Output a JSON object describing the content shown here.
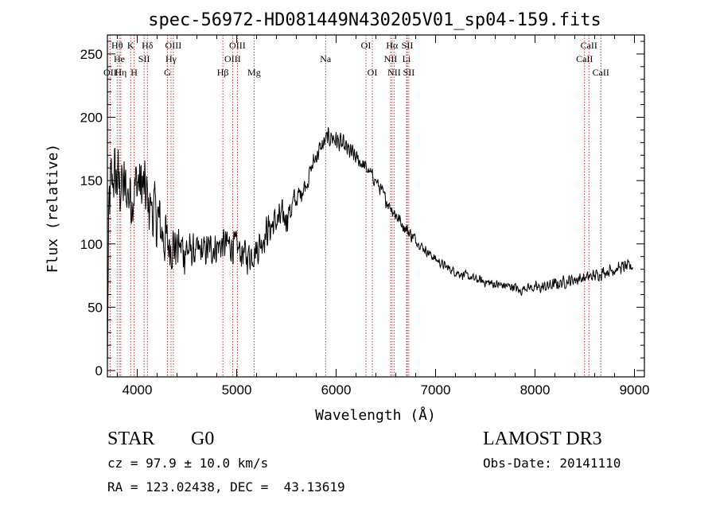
{
  "chart_data": {
    "type": "line",
    "title": "spec-56972-HD081449N430205V01_sp04-159.fits",
    "xlabel": "Wavelength (Å)",
    "ylabel": "Flux (relative)",
    "xlim": [
      3700,
      9100
    ],
    "ylim": [
      -5,
      265
    ],
    "xticks": [
      4000,
      5000,
      6000,
      7000,
      8000,
      9000
    ],
    "yticks": [
      0,
      50,
      100,
      150,
      200,
      250
    ],
    "minor_x_step": 200,
    "minor_y_step": 10,
    "xtick_labels": [
      "4000",
      "5000",
      "6000",
      "7000",
      "8000",
      "9000"
    ],
    "ytick_labels": [
      "0",
      "50",
      "100",
      "150",
      "200",
      "250"
    ],
    "series": [
      {
        "name": "flux",
        "anchors_x": [
          3700,
          3705,
          3720,
          3760,
          3800,
          3850,
          3900,
          3950,
          4000,
          4050,
          4100,
          4200,
          4300,
          4400,
          4500,
          4600,
          4700,
          4800,
          4900,
          5000,
          5100,
          5200,
          5300,
          5400,
          5500,
          5600,
          5700,
          5800,
          5900,
          5950,
          6000,
          6100,
          6200,
          6300,
          6400,
          6500,
          6600,
          6700,
          6800,
          6900,
          7000,
          7100,
          7200,
          7300,
          7400,
          7500,
          7600,
          7700,
          7800,
          7850,
          7900,
          8000,
          8100,
          8200,
          8300,
          8400,
          8500,
          8600,
          8700,
          8800,
          8900,
          8980
        ],
        "anchors_y": [
          0,
          60,
          130,
          155,
          150,
          145,
          140,
          138,
          150,
          145,
          135,
          120,
          100,
          98,
          95,
          93,
          95,
          98,
          100,
          97,
          90,
          95,
          110,
          118,
          122,
          135,
          148,
          170,
          182,
          185,
          182,
          175,
          168,
          160,
          150,
          135,
          123,
          112,
          103,
          95,
          88,
          82,
          78,
          75,
          72,
          70,
          68,
          67,
          66,
          62,
          66,
          65,
          66,
          68,
          70,
          72,
          73,
          75,
          78,
          80,
          82,
          82
        ],
        "noise_amplitude_note": "noise ~±35 below 4300Å, ~±20 to 5600Å, ~±8 near Na peak, ~±4 in red"
      }
    ],
    "spectral_lines": [
      {
        "label": "OII",
        "wavelength": 3727,
        "row": 2
      },
      {
        "label": "Hθ",
        "wavelength": 3798,
        "row": 0
      },
      {
        "label": "He",
        "wavelength": 3820,
        "row": 1
      },
      {
        "label": "Hη",
        "wavelength": 3835,
        "row": 2
      },
      {
        "label": "K",
        "wavelength": 3934,
        "row": 0
      },
      {
        "label": "H",
        "wavelength": 3969,
        "row": 2
      },
      {
        "label": "SII",
        "wavelength": 4069,
        "row": 1
      },
      {
        "label": "Hδ",
        "wavelength": 4102,
        "row": 0
      },
      {
        "label": "OIII",
        "wavelength": 4363,
        "row": 0
      },
      {
        "label": "Hγ",
        "wavelength": 4340,
        "row": 1
      },
      {
        "label": "G",
        "wavelength": 4304,
        "row": 2
      },
      {
        "label": "Hβ",
        "wavelength": 4861,
        "row": 2
      },
      {
        "label": "OIII",
        "wavelength": 4959,
        "row": 1
      },
      {
        "label": "OIII",
        "wavelength": 5007,
        "row": 0
      },
      {
        "label": "Mg",
        "wavelength": 5175,
        "row": 2
      },
      {
        "label": "Na",
        "wavelength": 5894,
        "row": 1
      },
      {
        "label": "OI",
        "wavelength": 6300,
        "row": 0
      },
      {
        "label": "OI",
        "wavelength": 6364,
        "row": 2
      },
      {
        "label": "NII",
        "wavelength": 6548,
        "row": 1
      },
      {
        "label": "Hα",
        "wavelength": 6563,
        "row": 0
      },
      {
        "label": "NII",
        "wavelength": 6583,
        "row": 2
      },
      {
        "label": "SII",
        "wavelength": 6716,
        "row": 0
      },
      {
        "label": "Li",
        "wavelength": 6708,
        "row": 1
      },
      {
        "label": "SII",
        "wavelength": 6731,
        "row": 2
      },
      {
        "label": "CaII",
        "wavelength": 8498,
        "row": 1
      },
      {
        "label": "CaII",
        "wavelength": 8542,
        "row": 0
      },
      {
        "label": "CaII",
        "wavelength": 8662,
        "row": 2
      }
    ],
    "line_color": "#000000",
    "marker_color": "#b22222"
  },
  "info": {
    "object_class": "STAR",
    "subclass": "G0",
    "survey": "LAMOST DR3",
    "redshift": "cz = 97.9 ± 10.0 km/s",
    "obs_date": "Obs-Date: 20141110",
    "coords": "RA = 123.02438, DEC =  43.13619"
  }
}
